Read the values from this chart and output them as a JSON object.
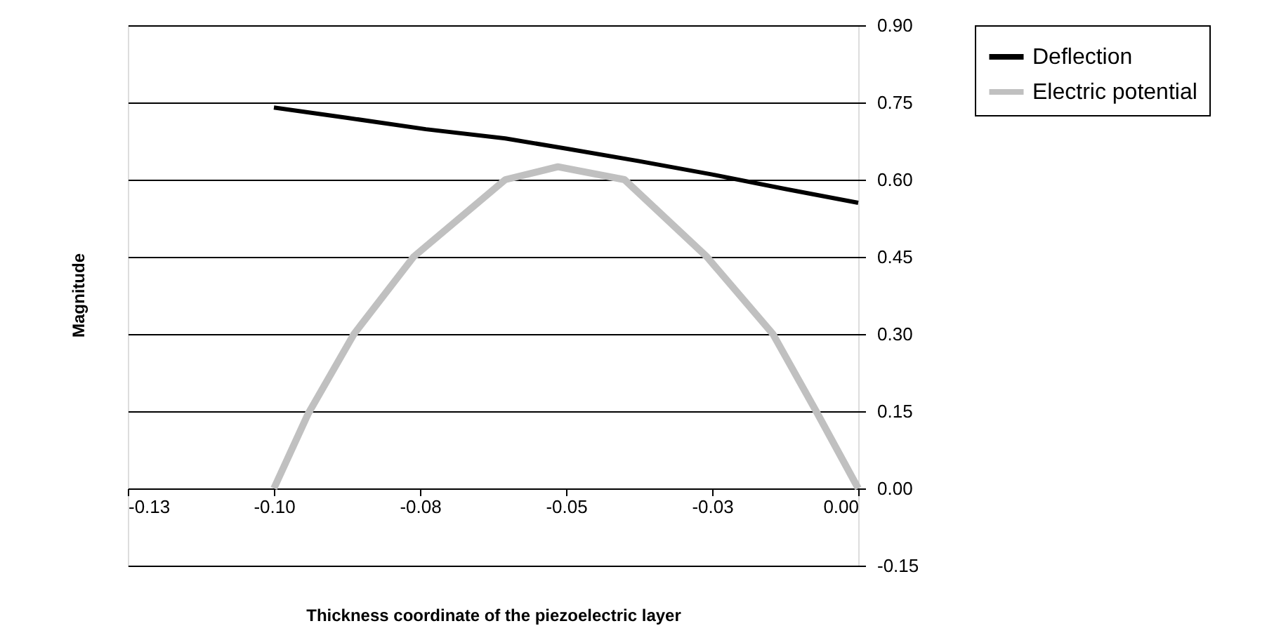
{
  "chart_data": {
    "type": "line",
    "xlabel": "Thickness coordinate of the piezoelectric layer",
    "ylabel": "Magnitude",
    "xlim": [
      -0.125,
      0
    ],
    "xticks": [
      {
        "value": -0.125,
        "label": "-0.13"
      },
      {
        "value": -0.1,
        "label": "-0.10"
      },
      {
        "value": -0.075,
        "label": "-0.08"
      },
      {
        "value": -0.05,
        "label": "-0.05"
      },
      {
        "value": -0.025,
        "label": "-0.03"
      },
      {
        "value": 0,
        "label": "0.00"
      }
    ],
    "ylim": [
      -0.15,
      0.9
    ],
    "yticks": [
      {
        "value": -0.15,
        "label": "-0.15"
      },
      {
        "value": 0,
        "label": "0.00"
      },
      {
        "value": 0.15,
        "label": "0.15"
      },
      {
        "value": 0.3,
        "label": "0.30"
      },
      {
        "value": 0.45,
        "label": "0.45"
      },
      {
        "value": 0.6,
        "label": "0.60"
      },
      {
        "value": 0.75,
        "label": "0.75"
      },
      {
        "value": 0.9,
        "label": "0.90"
      }
    ],
    "grid": "y",
    "legend": "right",
    "line_style": "solid",
    "marker": "none",
    "series": [
      {
        "name": "Deflection",
        "color": "#000000",
        "x": [
          -0.1,
          -0.0874,
          -0.074,
          -0.0604,
          -0.0498,
          -0.0375,
          -0.025,
          -0.0125,
          0
        ],
        "values": [
          0.74,
          0.72,
          0.698,
          0.68,
          0.66,
          0.636,
          0.61,
          0.582,
          0.555
        ]
      },
      {
        "name": "Electric potential",
        "color": "#c0c0c0",
        "x": [
          -0.1,
          -0.0941,
          -0.0863,
          -0.0761,
          -0.0604,
          -0.0514,
          -0.04,
          -0.0259,
          -0.0146,
          -0.007,
          0
        ],
        "values": [
          0,
          0.146,
          0.3,
          0.45,
          0.6,
          0.625,
          0.6,
          0.45,
          0.3,
          0.146,
          0
        ]
      }
    ]
  }
}
